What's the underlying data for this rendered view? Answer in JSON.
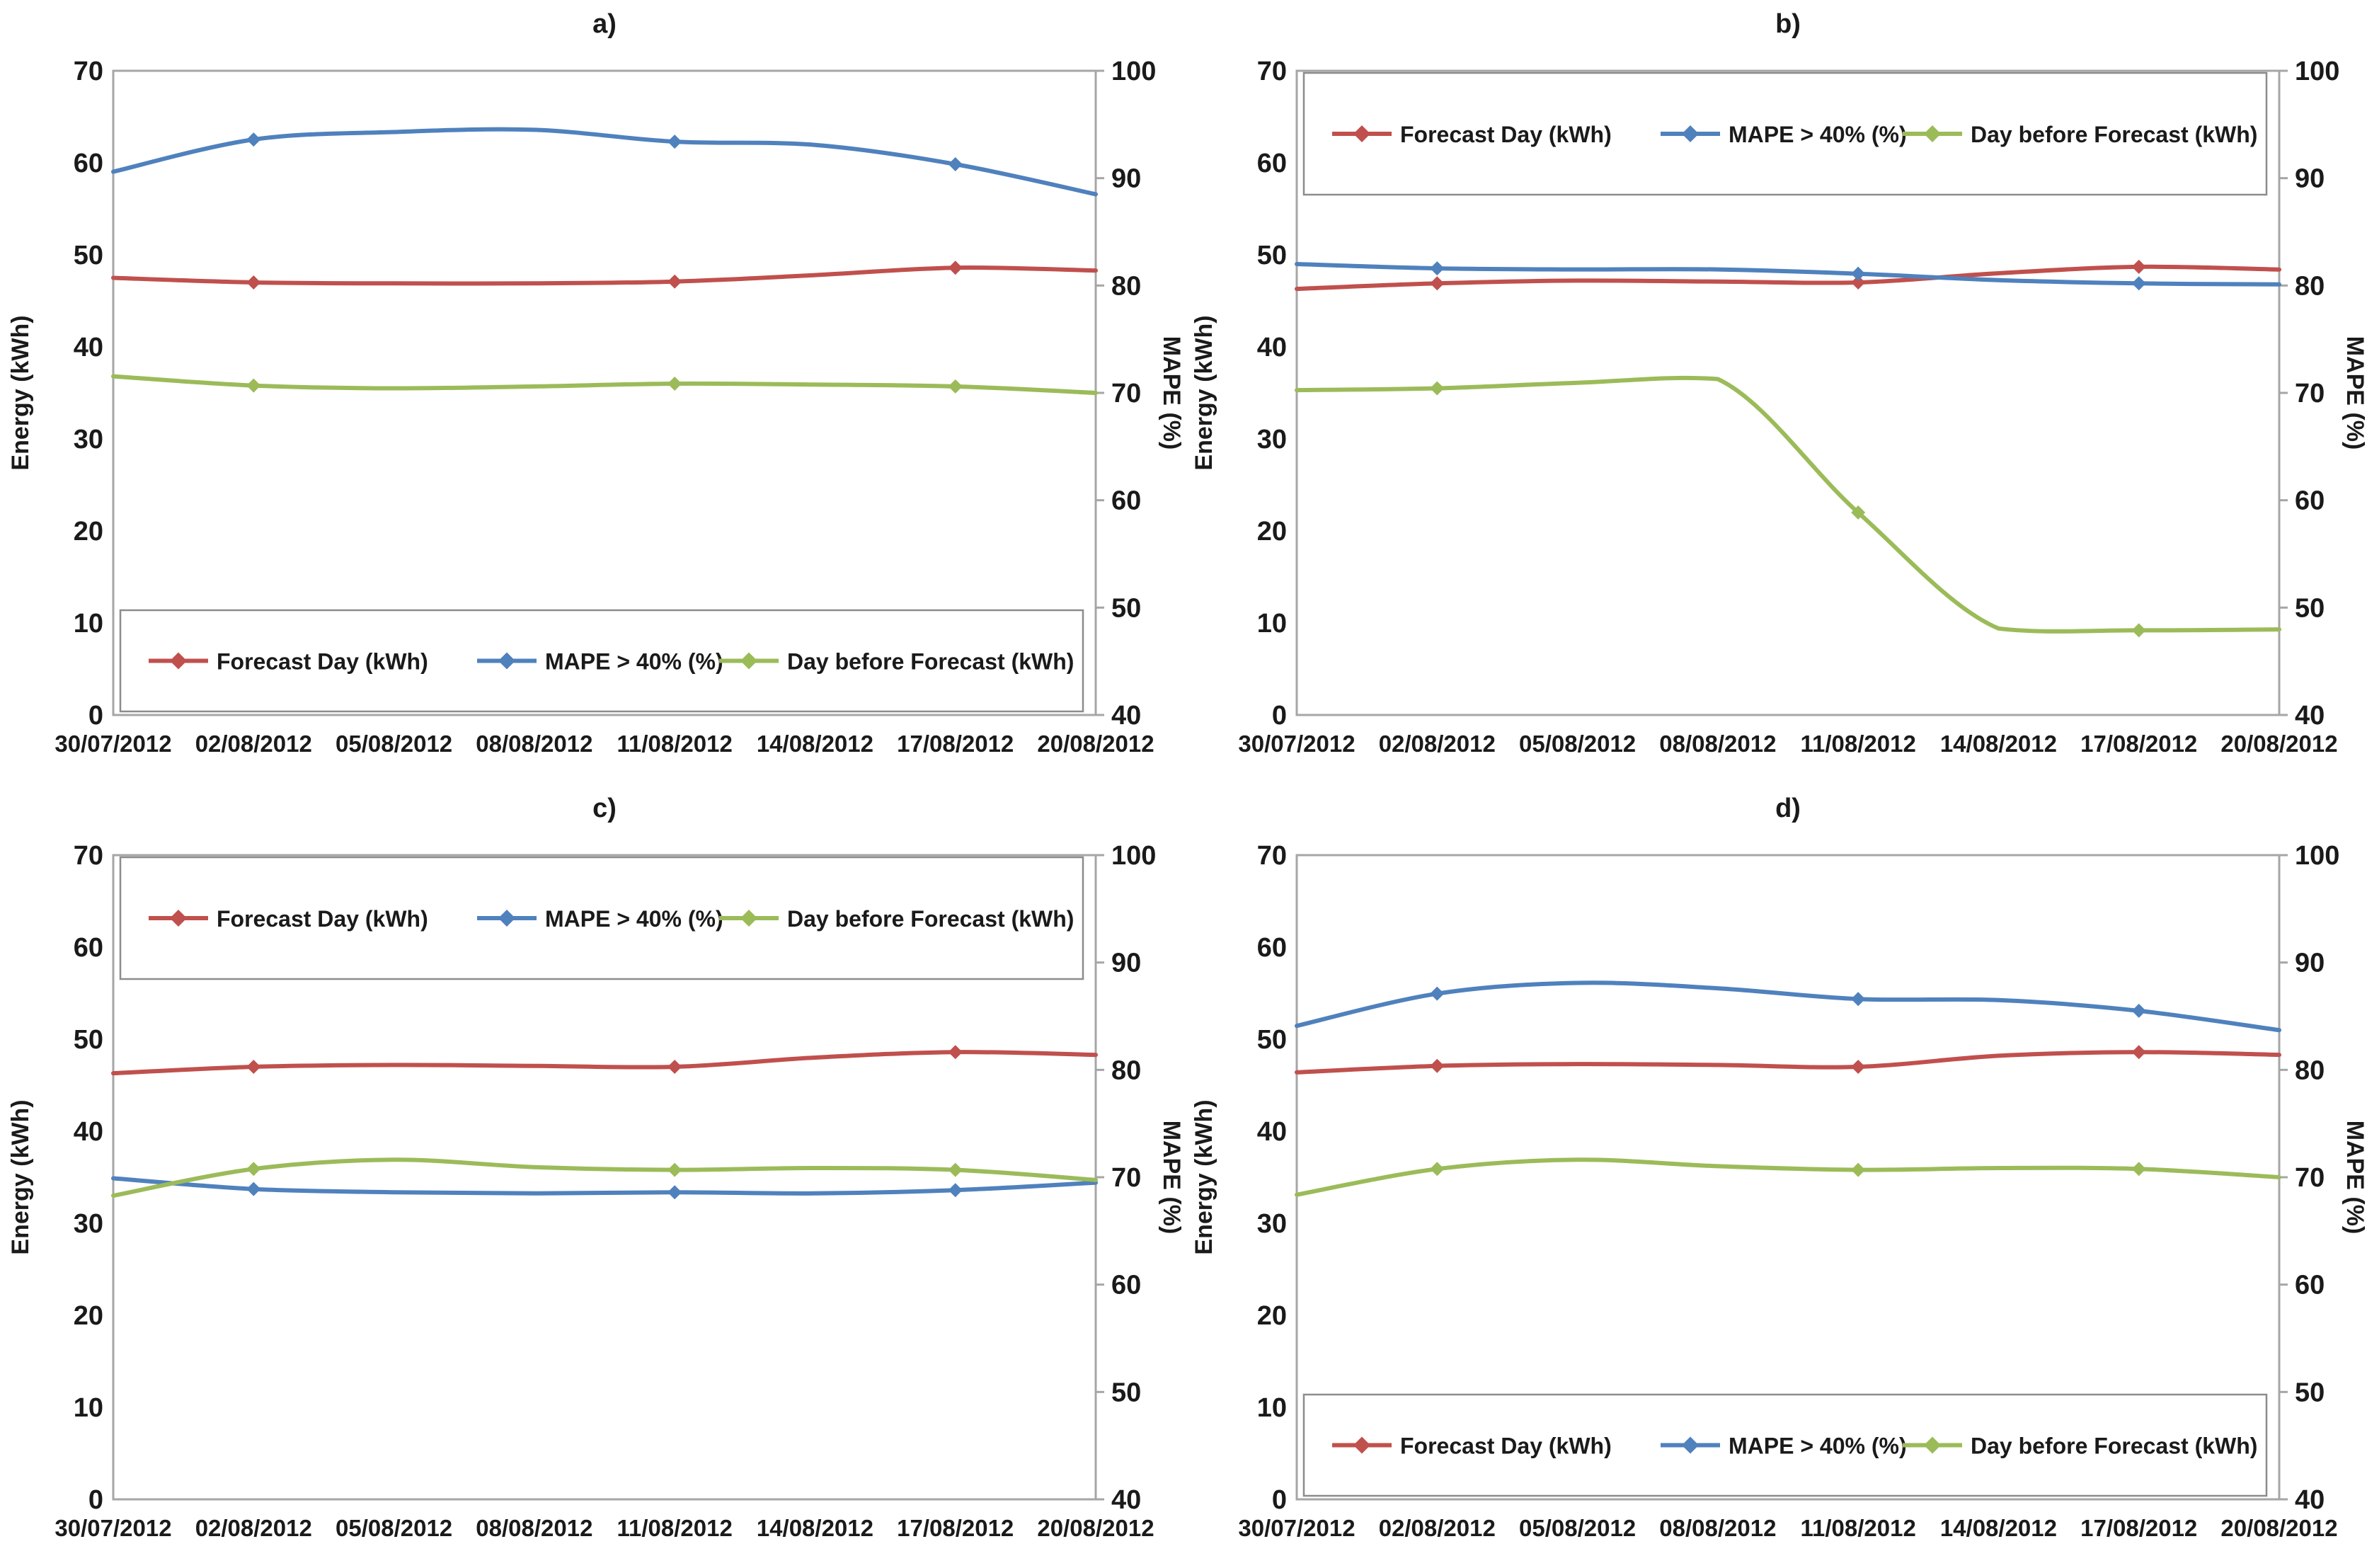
{
  "figure_title": "",
  "colors": {
    "forecast": "#C0504D",
    "mape": "#4F81BD",
    "daybefore": "#9BBB59",
    "text": "#1a1a1a",
    "axis_line": "#a6a6a6",
    "legend_border": "#8c8c8c",
    "background": "#ffffff"
  },
  "axes": {
    "x_labels": [
      "30/07/2012",
      "02/08/2012",
      "05/08/2012",
      "08/08/2012",
      "11/08/2012",
      "14/08/2012",
      "17/08/2012",
      "20/08/2012"
    ],
    "left_ticks": [
      0,
      10,
      20,
      30,
      40,
      50,
      60,
      70
    ],
    "right_ticks": [
      40,
      50,
      60,
      70,
      80,
      90,
      100
    ],
    "left_title": "Energy (kWh)",
    "right_title": "MAPE (%)",
    "left_range": [
      0,
      70
    ],
    "right_range": [
      40,
      100
    ]
  },
  "legend": {
    "items": [
      {
        "label": "Forecast Day (kWh)",
        "color_key": "forecast",
        "series": "forecast-day"
      },
      {
        "label": "MAPE > 40% (%)",
        "color_key": "mape",
        "series": "mape-gt-40"
      },
      {
        "label": "Day before Forecast (kWh)",
        "color_key": "daybefore",
        "series": "day-before-forecast"
      }
    ]
  },
  "chart_data": [
    {
      "id": "a",
      "title": "a)",
      "type": "line",
      "legend_position": "bottom",
      "categories": [
        "30/07/2012",
        "02/08/2012",
        "05/08/2012",
        "08/08/2012",
        "11/08/2012",
        "14/08/2012",
        "17/08/2012",
        "20/08/2012"
      ],
      "grid": false,
      "marker_indices": [
        1,
        4,
        6
      ],
      "series": [
        {
          "name": "Forecast Day (kWh)",
          "axis": "left",
          "color_key": "forecast",
          "values": [
            47.5,
            47.0,
            46.9,
            46.9,
            47.1,
            47.8,
            48.6,
            48.3
          ]
        },
        {
          "name": "MAPE > 40% (%)",
          "axis": "right",
          "color_key": "mape",
          "values": [
            90.6,
            93.6,
            94.3,
            94.5,
            93.4,
            93.1,
            91.3,
            88.5
          ]
        },
        {
          "name": "Day before Forecast (kWh)",
          "axis": "left",
          "color_key": "daybefore",
          "values": [
            36.8,
            35.8,
            35.5,
            35.7,
            36.0,
            35.9,
            35.7,
            35.0
          ]
        }
      ]
    },
    {
      "id": "b",
      "title": "b)",
      "type": "line",
      "legend_position": "top",
      "categories": [
        "30/07/2012",
        "02/08/2012",
        "05/08/2012",
        "08/08/2012",
        "11/08/2012",
        "14/08/2012",
        "17/08/2012",
        "20/08/2012"
      ],
      "grid": false,
      "marker_indices": [
        1,
        4,
        6
      ],
      "series": [
        {
          "name": "Forecast Day (kWh)",
          "axis": "left",
          "color_key": "forecast",
          "values": [
            46.3,
            46.9,
            47.2,
            47.1,
            47.0,
            48.0,
            48.7,
            48.4
          ]
        },
        {
          "name": "MAPE > 40% (%)",
          "axis": "right",
          "color_key": "mape",
          "values": [
            82.0,
            81.6,
            81.5,
            81.5,
            81.1,
            80.5,
            80.2,
            80.1
          ]
        },
        {
          "name": "Day before Forecast (kWh)",
          "axis": "left",
          "color_key": "daybefore",
          "values": [
            35.3,
            35.5,
            36.1,
            36.5,
            22.0,
            9.4,
            9.2,
            9.3
          ]
        }
      ]
    },
    {
      "id": "c",
      "title": "c)",
      "type": "line",
      "legend_position": "top",
      "categories": [
        "30/07/2012",
        "02/08/2012",
        "05/08/2012",
        "08/08/2012",
        "11/08/2012",
        "14/08/2012",
        "17/08/2012",
        "20/08/2012"
      ],
      "grid": false,
      "marker_indices": [
        1,
        4,
        6
      ],
      "series": [
        {
          "name": "Forecast Day (kWh)",
          "axis": "left",
          "color_key": "forecast",
          "values": [
            46.3,
            47.0,
            47.2,
            47.1,
            47.0,
            48.0,
            48.6,
            48.3
          ]
        },
        {
          "name": "MAPE > 40% (%)",
          "axis": "right",
          "color_key": "mape",
          "values": [
            69.9,
            68.9,
            68.6,
            68.5,
            68.6,
            68.5,
            68.8,
            69.5
          ]
        },
        {
          "name": "Day before Forecast (kWh)",
          "axis": "left",
          "color_key": "daybefore",
          "values": [
            33.0,
            35.9,
            36.9,
            36.1,
            35.8,
            36.0,
            35.8,
            34.7
          ]
        }
      ]
    },
    {
      "id": "d",
      "title": "d)",
      "type": "line",
      "legend_position": "bottom",
      "categories": [
        "30/07/2012",
        "02/08/2012",
        "05/08/2012",
        "08/08/2012",
        "11/08/2012",
        "14/08/2012",
        "17/08/2012",
        "20/08/2012"
      ],
      "grid": false,
      "marker_indices": [
        1,
        4,
        6
      ],
      "series": [
        {
          "name": "Forecast Day (kWh)",
          "axis": "left",
          "color_key": "forecast",
          "values": [
            46.4,
            47.1,
            47.3,
            47.2,
            47.0,
            48.2,
            48.6,
            48.3
          ]
        },
        {
          "name": "MAPE > 40% (%)",
          "axis": "right",
          "color_key": "mape",
          "values": [
            84.1,
            87.1,
            88.1,
            87.6,
            86.6,
            86.5,
            85.5,
            83.7
          ]
        },
        {
          "name": "Day before Forecast (kWh)",
          "axis": "left",
          "color_key": "daybefore",
          "values": [
            33.1,
            35.9,
            36.9,
            36.2,
            35.8,
            36.0,
            35.9,
            35.0
          ]
        }
      ]
    }
  ]
}
